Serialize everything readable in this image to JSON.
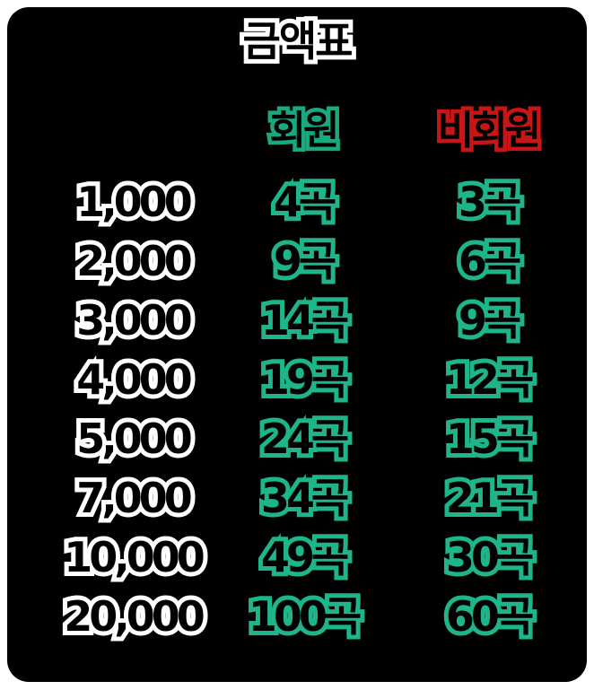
{
  "title": "금액표",
  "headers": {
    "member": "회원",
    "nonmember": "비회원"
  },
  "colors": {
    "background": "#000000",
    "member_outline": "#1fb58a",
    "nonmember_header_outline": "#c81515",
    "amount_outline": "#ffffff"
  },
  "rows": [
    {
      "amount": "1,000",
      "member": "4곡",
      "nonmember": "3곡"
    },
    {
      "amount": "2,000",
      "member": "9곡",
      "nonmember": "6곡"
    },
    {
      "amount": "3,000",
      "member": "14곡",
      "nonmember": "9곡"
    },
    {
      "amount": "4,000",
      "member": "19곡",
      "nonmember": "12곡"
    },
    {
      "amount": "5,000",
      "member": "24곡",
      "nonmember": "15곡"
    },
    {
      "amount": "7,000",
      "member": "34곡",
      "nonmember": "21곡"
    },
    {
      "amount": "10,000",
      "member": "49곡",
      "nonmember": "30곡"
    },
    {
      "amount": "20,000",
      "member": "100곡",
      "nonmember": "60곡"
    }
  ]
}
